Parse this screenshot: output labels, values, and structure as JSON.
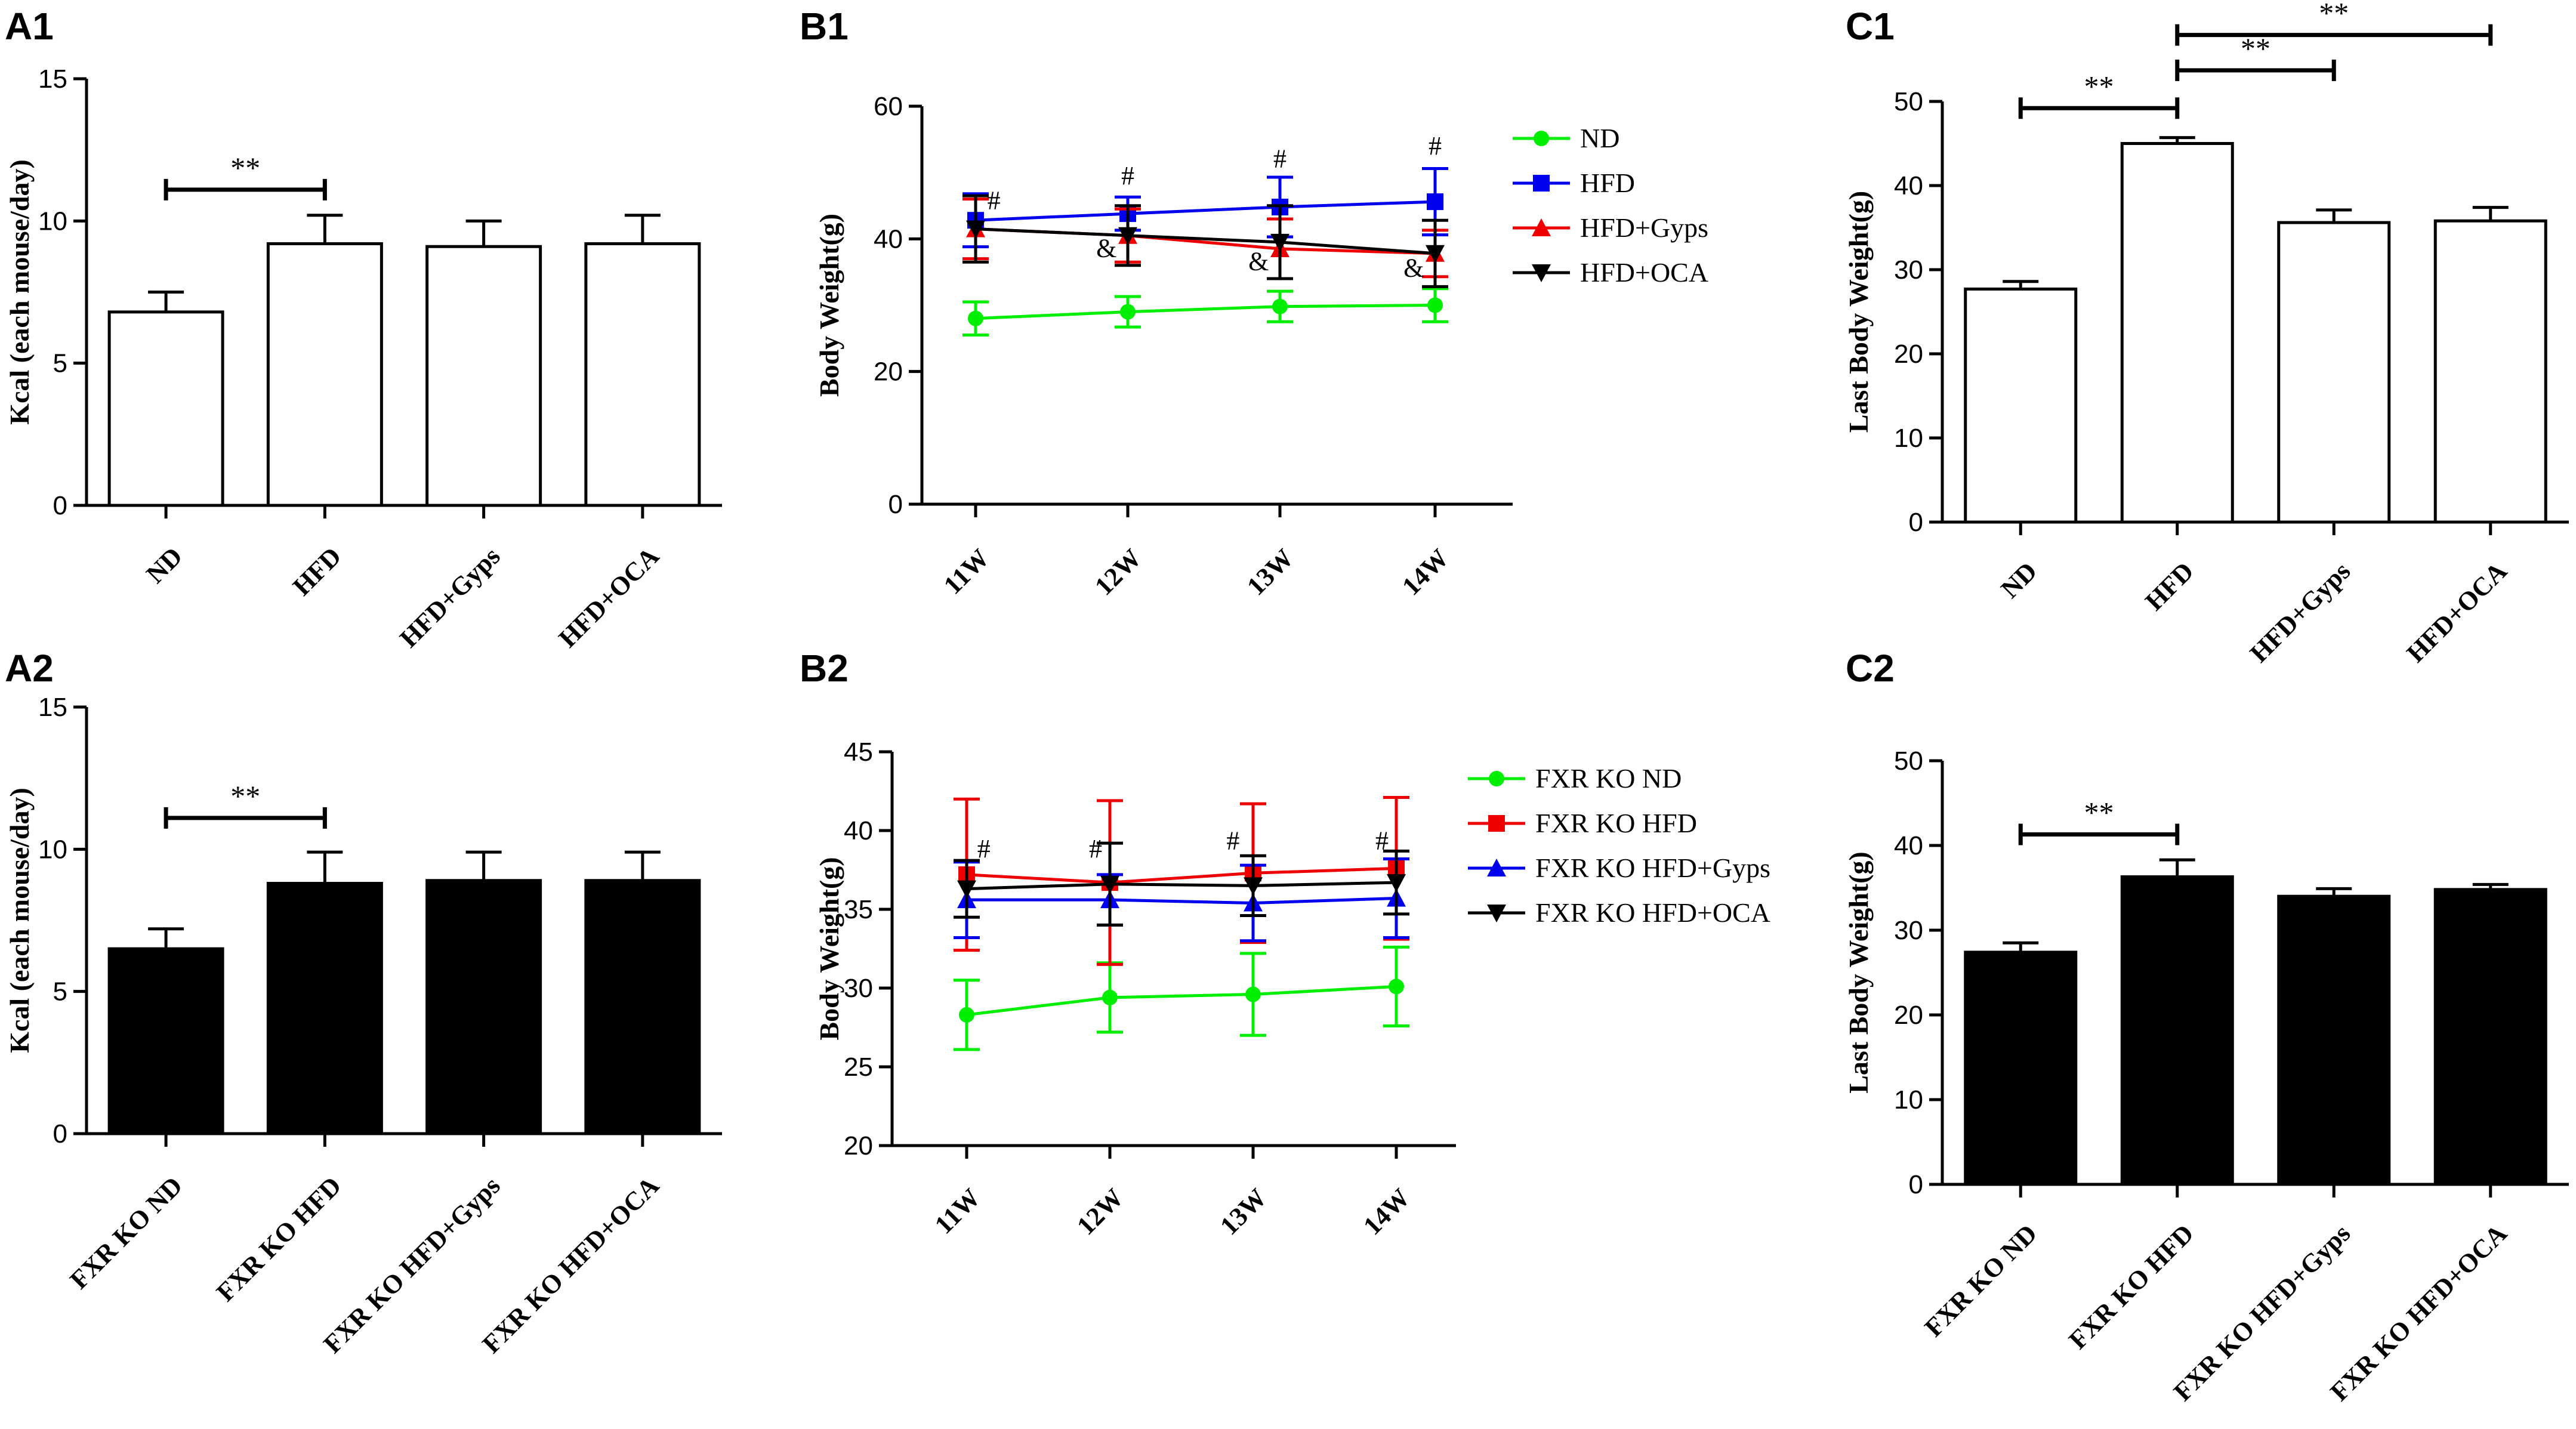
{
  "chart_data": [
    {
      "id": "A1",
      "type": "bar",
      "panel_label": "A1",
      "ylabel": "Kcal (each mouse/day)",
      "ylim": [
        0,
        15
      ],
      "yticks": [
        0,
        5,
        10,
        15
      ],
      "bar_fill": "#ffffff",
      "categories": [
        "ND",
        "HFD",
        "HFD+Gyps",
        "HFD+OCA"
      ],
      "values": [
        6.8,
        9.2,
        9.1,
        9.2
      ],
      "errors": [
        0.7,
        1.0,
        0.9,
        1.0
      ],
      "significance": [
        {
          "from": 0,
          "to": 1,
          "level": 11.1,
          "label": "**"
        }
      ]
    },
    {
      "id": "A2",
      "type": "bar",
      "panel_label": "A2",
      "ylabel": "Kcal (each mouse/day)",
      "ylim": [
        0,
        15
      ],
      "yticks": [
        0,
        5,
        10,
        15
      ],
      "bar_fill": "#000000",
      "categories": [
        "FXR KO ND",
        "FXR KO HFD",
        "FXR KO HFD+Gyps",
        "FXR KO HFD+OCA"
      ],
      "values": [
        6.5,
        8.8,
        8.9,
        8.9
      ],
      "errors": [
        0.7,
        1.1,
        1.0,
        1.0
      ],
      "significance": [
        {
          "from": 0,
          "to": 1,
          "level": 11.1,
          "label": "**"
        }
      ]
    },
    {
      "id": "B1",
      "type": "line",
      "panel_label": "B1",
      "ylabel": "Body Weight(g)",
      "ylim": [
        0,
        60
      ],
      "yticks": [
        0,
        20,
        40,
        60
      ],
      "x": [
        "11W",
        "12W",
        "13W",
        "14W"
      ],
      "series": [
        {
          "name": "ND",
          "color": "#00ee00",
          "marker": "circle",
          "values": [
            28,
            29,
            29.8,
            30
          ],
          "errors": [
            2.5,
            2.3,
            2.3,
            2.5
          ]
        },
        {
          "name": "HFD",
          "color": "#0000ee",
          "marker": "square",
          "values": [
            42.8,
            43.8,
            44.8,
            45.6
          ],
          "errors": [
            4,
            2.5,
            4.5,
            5
          ]
        },
        {
          "name": "HFD+Gyps",
          "color": "#ee0000",
          "marker": "triangle-up",
          "values": [
            41.5,
            40.5,
            38.5,
            37.8
          ],
          "errors": [
            4.5,
            4,
            4.5,
            3.5
          ]
        },
        {
          "name": "HFD+OCA",
          "color": "#000000",
          "marker": "triangle-down",
          "values": [
            41.5,
            40.5,
            39.5,
            37.8
          ],
          "errors": [
            5,
            4.5,
            5.5,
            5
          ]
        }
      ],
      "annotations": [
        {
          "text": "#",
          "x": 0,
          "y": 44.5,
          "dx": 0.12
        },
        {
          "text": "#",
          "x": 1,
          "y": 48.2,
          "dx": 0
        },
        {
          "text": "#",
          "x": 2,
          "y": 50.8,
          "dx": 0
        },
        {
          "text": "#",
          "x": 3,
          "y": 52.7,
          "dx": 0
        },
        {
          "text": "&",
          "x": 1,
          "y": 37.3,
          "dx": -0.14
        },
        {
          "text": "&",
          "x": 2,
          "y": 35.3,
          "dx": -0.14
        },
        {
          "text": "&",
          "x": 3,
          "y": 34.3,
          "dx": -0.14
        }
      ]
    },
    {
      "id": "B2",
      "type": "line",
      "panel_label": "B2",
      "ylabel": "Body Weight(g)",
      "ylim": [
        20,
        45
      ],
      "yticks": [
        20,
        25,
        30,
        35,
        40,
        45
      ],
      "x": [
        "11W",
        "12W",
        "13W",
        "14W"
      ],
      "series": [
        {
          "name": "FXR KO ND",
          "color": "#00ee00",
          "marker": "circle",
          "values": [
            28.3,
            29.4,
            29.6,
            30.1
          ],
          "errors": [
            2.2,
            2.2,
            2.6,
            2.5
          ]
        },
        {
          "name": "FXR KO HFD",
          "color": "#ee0000",
          "marker": "square",
          "values": [
            37.2,
            36.7,
            37.3,
            37.6
          ],
          "errors": [
            4.8,
            5.2,
            4.4,
            4.5
          ]
        },
        {
          "name": "FXR KO HFD+Gyps",
          "color": "#0000ee",
          "marker": "triangle-up",
          "values": [
            35.6,
            35.6,
            35.4,
            35.7
          ],
          "errors": [
            2.4,
            1.6,
            2.4,
            2.5
          ]
        },
        {
          "name": "FXR KO HFD+OCA",
          "color": "#000000",
          "marker": "triangle-down",
          "values": [
            36.3,
            36.6,
            36.5,
            36.7
          ],
          "errors": [
            1.8,
            2.6,
            1.9,
            2.0
          ]
        }
      ],
      "annotations": [
        {
          "text": "#",
          "x": 0,
          "y": 38.3,
          "dx": 0.12
        },
        {
          "text": "#",
          "x": 1,
          "y": 38.3,
          "dx": -0.1
        },
        {
          "text": "#",
          "x": 2,
          "y": 38.8,
          "dx": -0.14
        },
        {
          "text": "#",
          "x": 3,
          "y": 38.8,
          "dx": -0.1
        }
      ]
    },
    {
      "id": "C1",
      "type": "bar",
      "panel_label": "C1",
      "ylabel": "Last Body Weight(g)",
      "ylim": [
        0,
        50
      ],
      "yticks": [
        0,
        10,
        20,
        30,
        40,
        50
      ],
      "bar_fill": "#ffffff",
      "categories": [
        "ND",
        "HFD",
        "HFD+Gyps",
        "HFD+OCA"
      ],
      "values": [
        27.7,
        45.0,
        35.6,
        35.8
      ],
      "errors": [
        0.9,
        0.7,
        1.5,
        1.6
      ],
      "significance": [
        {
          "from": 0,
          "to": 1,
          "level": 49.2,
          "label": "**"
        },
        {
          "from": 1,
          "to": 2,
          "level": 53.7,
          "label": "**"
        },
        {
          "from": 1,
          "to": 3,
          "level": 57.9,
          "label": "**"
        }
      ]
    },
    {
      "id": "C2",
      "type": "bar",
      "panel_label": "C2",
      "ylabel": "Last Body Weight(g)",
      "ylim": [
        0,
        50
      ],
      "yticks": [
        0,
        10,
        20,
        30,
        40,
        50
      ],
      "bar_fill": "#000000",
      "categories": [
        "FXR KO ND",
        "FXR KO HFD",
        "FXR KO HFD+Gyps",
        "FXR KO HFD+OCA"
      ],
      "values": [
        27.4,
        36.3,
        34.0,
        34.8
      ],
      "errors": [
        1.1,
        2.0,
        0.9,
        0.6
      ],
      "significance": [
        {
          "from": 0,
          "to": 1,
          "level": 41.3,
          "label": "**"
        }
      ]
    }
  ]
}
